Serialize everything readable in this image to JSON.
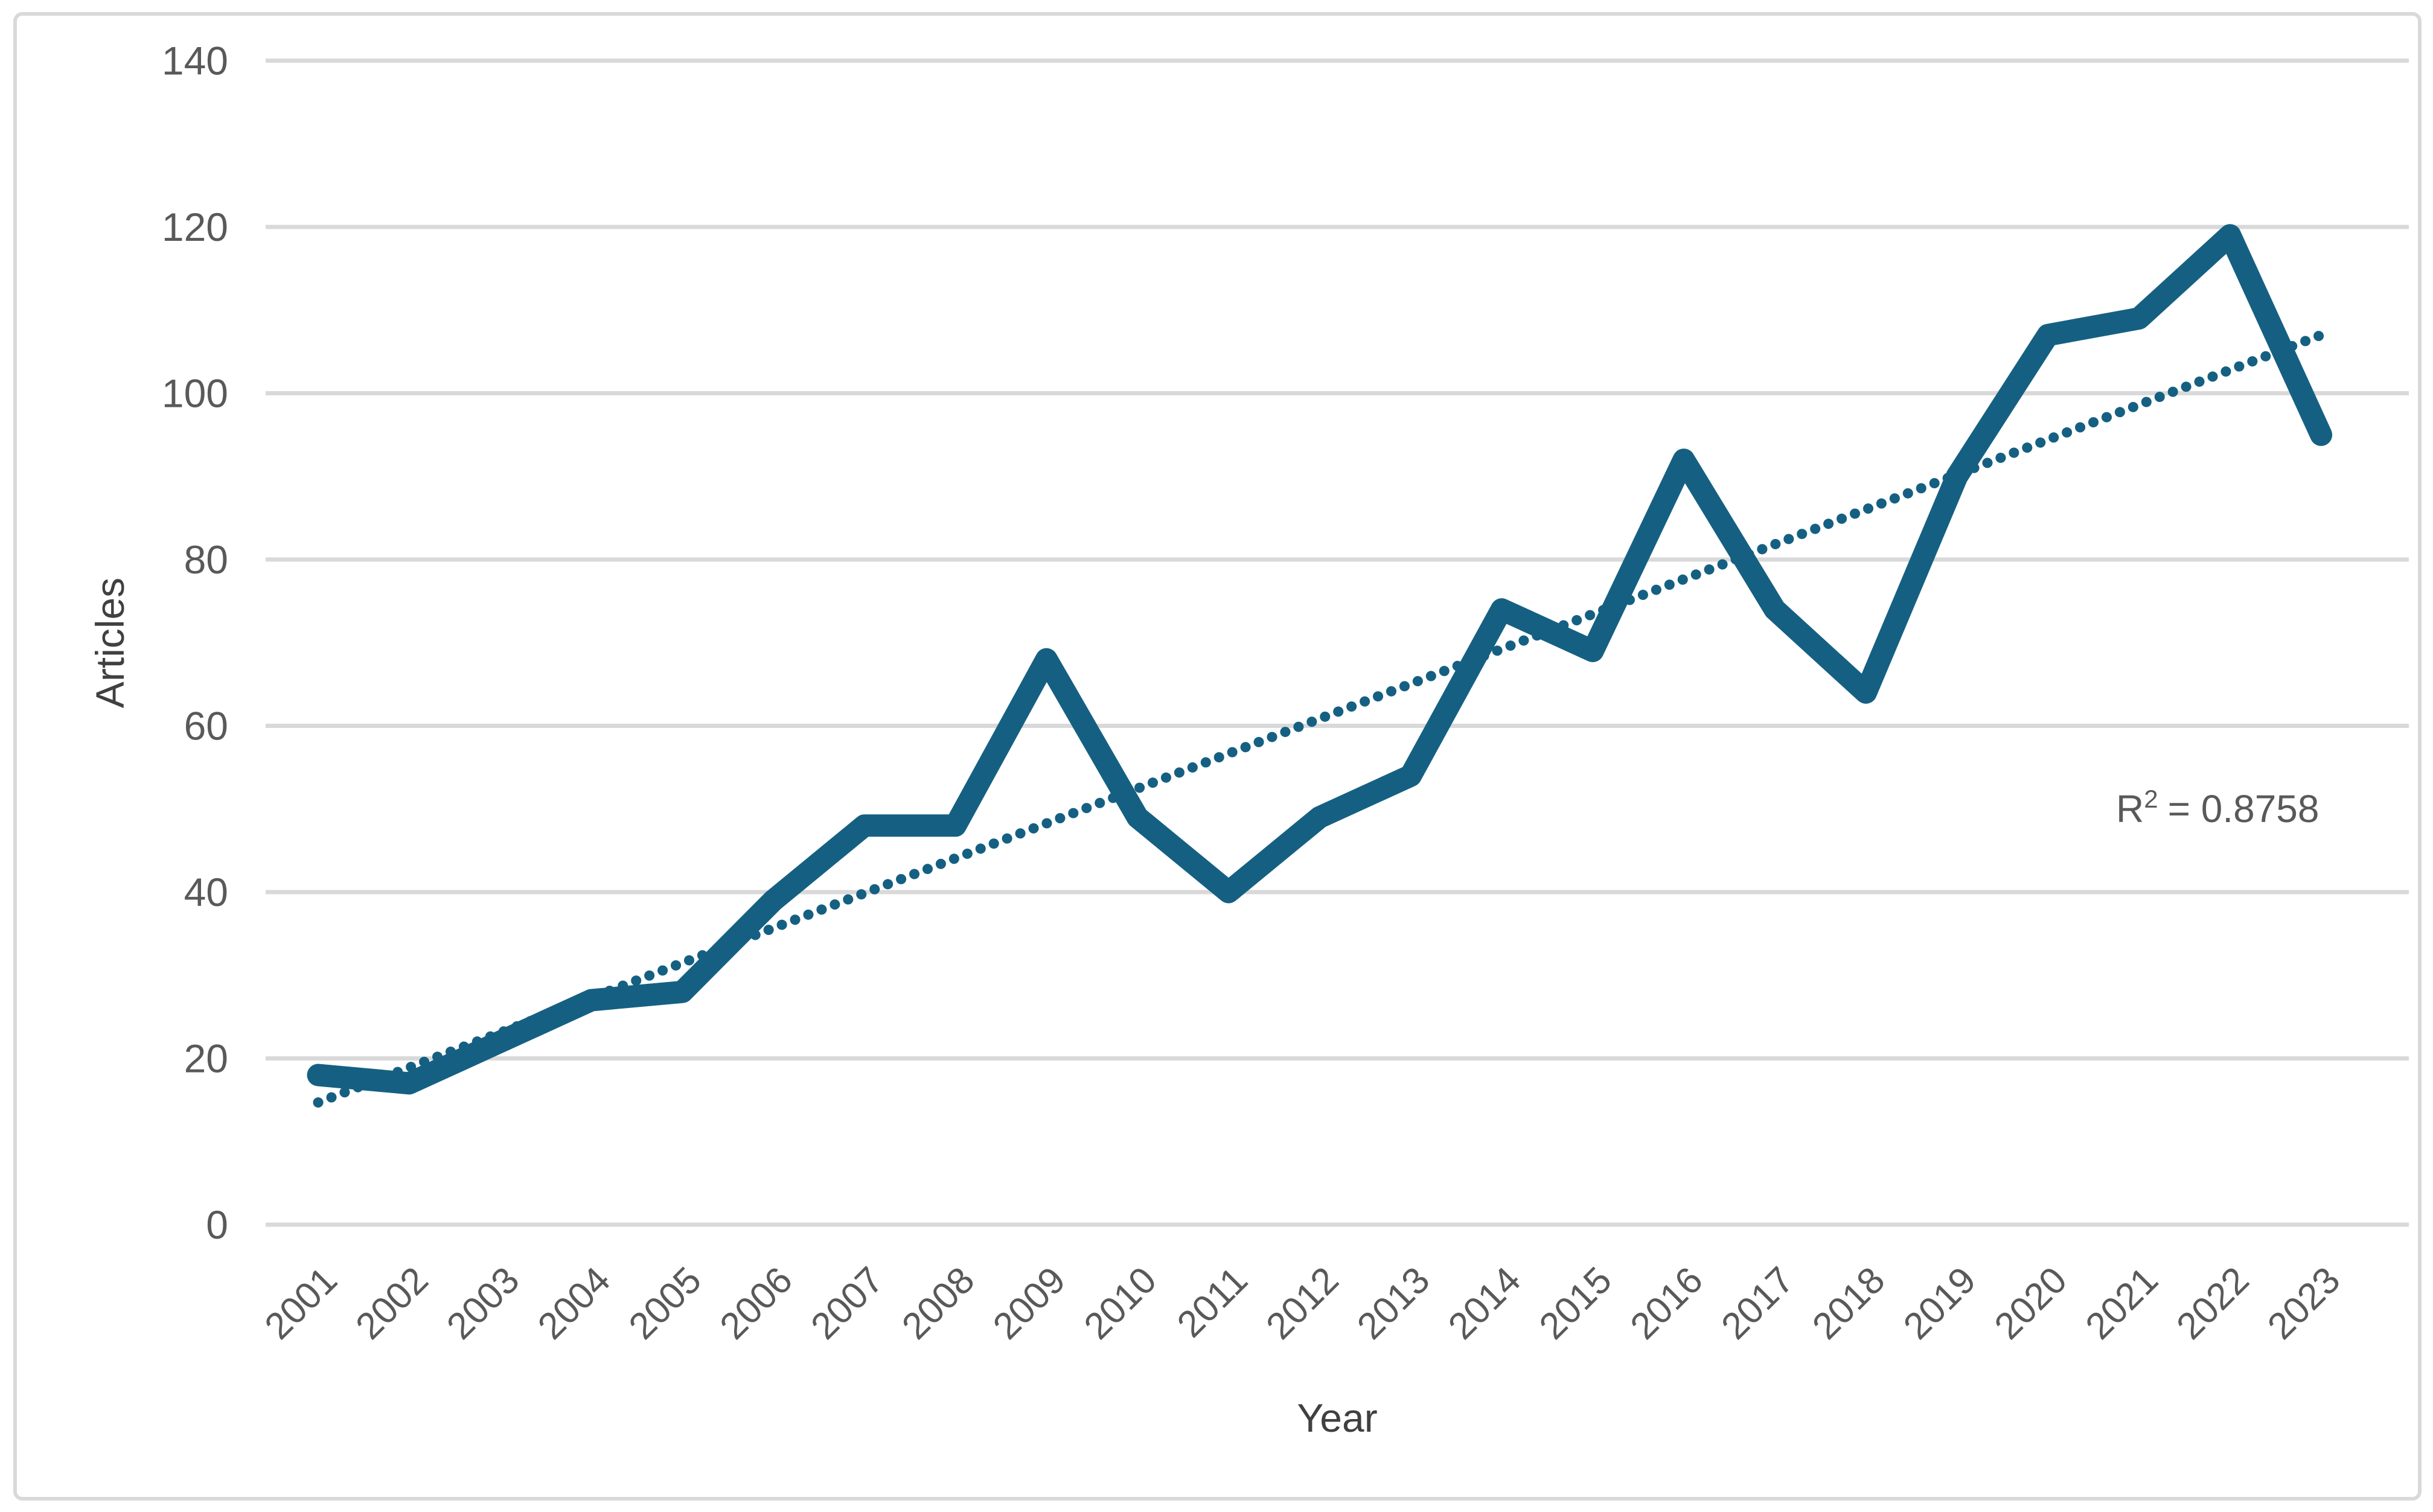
{
  "colors": {
    "series": "#156082",
    "trendline": "#156082",
    "gridline": "#D9D9D9",
    "border": "#D9D9D9",
    "tick_label": "#595959",
    "axis_title": "#404040",
    "annotation_text": "#595959",
    "background": "#FFFFFF"
  },
  "annotation": {
    "base": "R",
    "sup": "2",
    "rest": "= 0.8758"
  },
  "chart_data": {
    "type": "line",
    "title": "",
    "xlabel": "Year",
    "ylabel": "Articles",
    "categories": [
      "2001",
      "2002",
      "2003",
      "2004",
      "2005",
      "2006",
      "2007",
      "2008",
      "2009",
      "2010",
      "2011",
      "2012",
      "2013",
      "2014",
      "2015",
      "2016",
      "2017",
      "2018",
      "2019",
      "2020",
      "2021",
      "2022",
      "2023"
    ],
    "series": [
      {
        "name": "Articles",
        "values": [
          18,
          17,
          22,
          27,
          28,
          39,
          48,
          48,
          68,
          49,
          40,
          49,
          54,
          74,
          69,
          92,
          74,
          64,
          90,
          107,
          109,
          119,
          95
        ]
      }
    ],
    "trendline": {
      "type": "linear",
      "style": "dotted",
      "slope_per_year": 4.2,
      "value_at_2001": 14.7,
      "value_at_2023": 107.0,
      "r2": 0.8758
    },
    "ylim": [
      0,
      140
    ],
    "yticks": [
      0,
      20,
      40,
      60,
      80,
      100,
      120,
      140
    ],
    "grid": true,
    "legend": "none",
    "x_tick_rotation_deg": -45
  }
}
